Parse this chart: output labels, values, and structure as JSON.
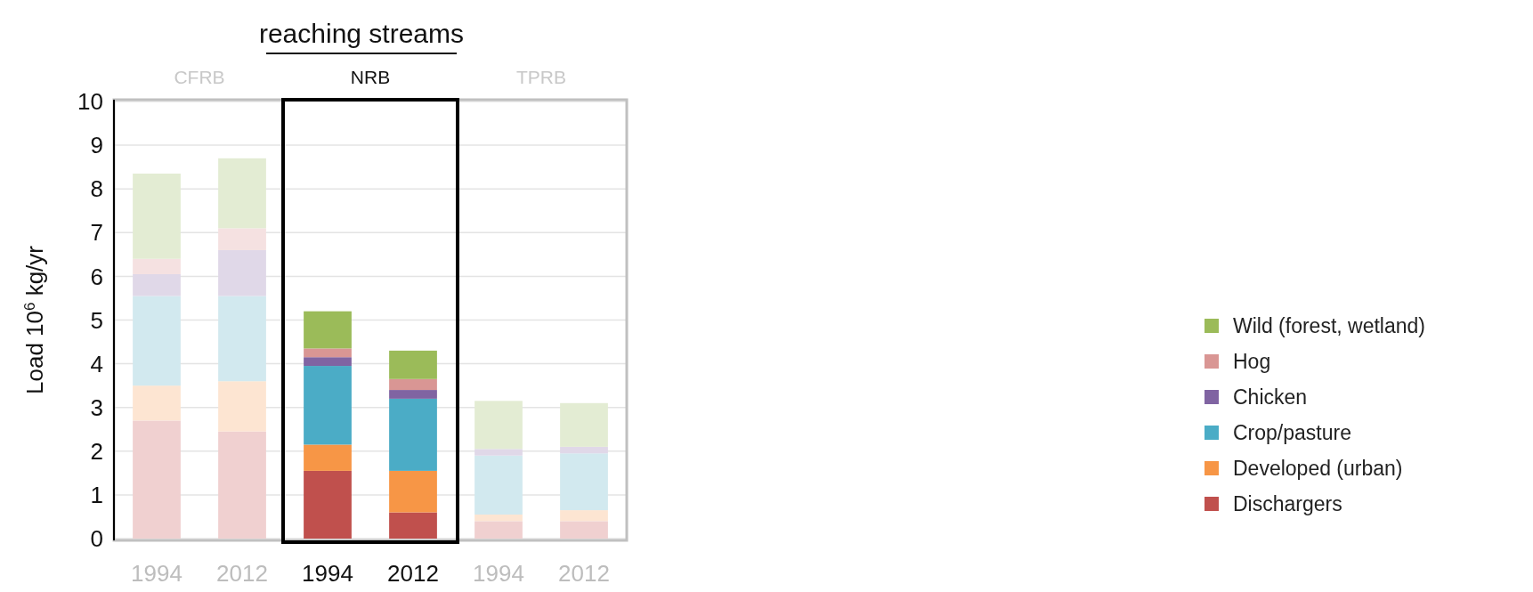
{
  "chart_data": {
    "type": "bar",
    "title": "reaching streams",
    "ylabel": "Load 10$^{6}$ kg/yr",
    "categories": [
      "1994",
      "2012",
      "1994",
      "2012",
      "1994",
      "2012"
    ],
    "stacked": true,
    "ylim": [
      0,
      10
    ],
    "yticks": [
      0,
      1,
      2,
      3,
      4,
      5,
      6,
      7,
      8,
      9,
      10
    ],
    "grid": "y",
    "legend": "right",
    "annotations": [
      "CFRB",
      "NRB",
      "TPRB"
    ],
    "series": [
      {
        "name": "Dischargers",
        "color": "#c0504d",
        "colors": [
          "#f0d0d0",
          "#f0d0d0",
          "#c0504d",
          "#c0504d",
          "#f0d0d0",
          "#f0d0d0"
        ],
        "values": [
          2.7,
          2.45,
          1.55,
          0.6,
          0.4,
          0.4
        ]
      },
      {
        "name": "Developed (urban)",
        "color": "#f79646",
        "colors": [
          "#fde5d2",
          "#fde5d2",
          "#f79646",
          "#f79646",
          "#fde5d2",
          "#fde5d2"
        ],
        "values": [
          0.8,
          1.15,
          0.6,
          0.95,
          0.15,
          0.25
        ]
      },
      {
        "name": "Crop/pasture",
        "color": "#4bacc6",
        "colors": [
          "#d2e9ef",
          "#d2e9ef",
          "#4bacc6",
          "#4bacc6",
          "#d2e9ef",
          "#d2e9ef"
        ],
        "values": [
          2.05,
          1.95,
          1.8,
          1.65,
          1.35,
          1.3
        ]
      },
      {
        "name": "Chicken",
        "color": "#8064a2",
        "colors": [
          "#e0d8e8",
          "#e0d8e8",
          "#8064a2",
          "#8064a2",
          "#e0d8e8",
          "#e0d8e8"
        ],
        "values": [
          0.5,
          1.05,
          0.2,
          0.2,
          0.15,
          0.15
        ]
      },
      {
        "name": "Hog",
        "color": "#d99694",
        "colors": [
          "#f5e1e1",
          "#f5e1e1",
          "#d99694",
          "#d99694",
          "#f5e1e1",
          "#f5e1e1"
        ],
        "values": [
          0.35,
          0.5,
          0.2,
          0.25,
          0,
          0
        ]
      },
      {
        "name": "Wild (forest, wetland)",
        "color": "#9bbb59",
        "colors": [
          "#e3ecd3",
          "#e3ecd3",
          "#9bbb59",
          "#9bbb59",
          "#e3ecd3",
          "#e3ecd3"
        ],
        "values": [
          1.95,
          1.6,
          0.85,
          0.65,
          1.1,
          1.0
        ]
      }
    ]
  }
}
